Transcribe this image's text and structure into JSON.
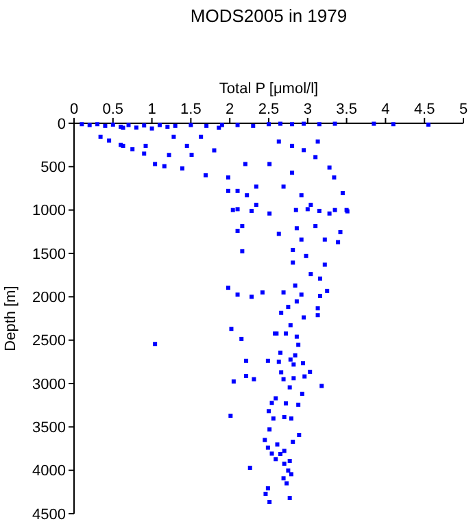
{
  "chart_data": {
    "type": "scatter",
    "title": "MODS2005 in 1979",
    "xlabel": "Total P [μmol/l]",
    "ylabel": "Depth [m]",
    "xlim": [
      0,
      5
    ],
    "xticks": [
      0,
      0.5,
      1,
      1.5,
      2,
      2.5,
      3,
      3.5,
      4,
      4.5,
      5
    ],
    "ylim": [
      4500,
      0
    ],
    "yticks": [
      0,
      500,
      1000,
      1500,
      2000,
      2500,
      3000,
      3500,
      4000,
      4500
    ],
    "marker": "square",
    "grid": false,
    "series": [
      {
        "color": "#0000ff",
        "x": [
          0.1,
          0.2,
          0.3,
          0.4,
          0.5,
          0.6,
          0.7,
          0.8,
          0.9,
          1.0,
          1.1,
          1.2,
          1.3,
          1.5,
          1.7,
          1.9,
          2.1,
          2.3,
          2.5,
          2.65,
          2.8,
          2.95,
          3.15,
          3.35,
          3.85,
          4.1,
          4.55,
          0.34,
          0.45,
          0.6,
          0.75,
          0.9,
          0.63,
          1.04,
          1.16,
          1.51,
          1.39,
          1.8,
          1.69,
          1.98,
          2.2,
          2.34,
          2.1,
          2.51,
          2.63,
          2.8,
          2.95,
          3.13,
          3.1,
          3.28,
          3.34,
          2.8,
          2.69,
          2.92,
          3.04,
          3.28,
          3.45,
          3.51,
          1.98,
          2.1,
          2.22,
          2.34,
          0.92,
          1.28,
          0.63,
          1.63,
          1.86,
          1.22,
          1.45,
          2.04,
          2.28,
          2.85,
          3.0,
          3.15,
          3.35,
          3.5,
          2.51,
          2.16,
          2.1,
          2.86,
          3.1,
          3.42,
          3.39,
          3.22,
          2.92,
          2.63,
          2.16,
          2.81,
          2.98,
          3.22,
          2.81,
          3.04,
          2.84,
          3.16,
          1.98,
          2.1,
          2.28,
          2.42,
          2.69,
          2.92,
          3.25,
          3.16,
          2.86,
          2.75,
          3.13,
          2.66,
          2.95,
          3.13,
          2.78,
          2.02,
          2.6,
          2.86,
          2.15,
          1.04,
          2.58,
          2.72,
          2.88,
          2.65,
          2.84,
          2.21,
          2.49,
          2.63,
          2.78,
          2.94,
          2.82,
          2.66,
          2.21,
          2.31,
          2.05,
          2.69,
          2.82,
          2.96,
          3.03,
          3.18,
          2.77,
          2.93,
          2.59,
          2.54,
          2.72,
          2.88,
          2.5,
          2.01,
          2.56,
          2.7,
          2.79,
          2.51,
          2.89,
          2.45,
          2.81,
          2.61,
          2.49,
          2.7,
          2.54,
          2.65,
          2.59,
          2.77,
          2.7,
          2.26,
          2.75,
          2.79,
          2.69,
          2.73,
          2.49,
          2.46,
          2.77,
          2.51
        ],
        "values": [
          10,
          20,
          10,
          30,
          15,
          40,
          20,
          50,
          25,
          60,
          20,
          40,
          30,
          20,
          30,
          20,
          20,
          30,
          10,
          5,
          10,
          5,
          10,
          5,
          5,
          10,
          15,
          156,
          200,
          250,
          300,
          350,
          260,
          470,
          495,
          364,
          520,
          312,
          600,
          625,
          470,
          730,
          780,
          470,
          210,
          260,
          310,
          210,
          390,
          510,
          625,
          570,
          730,
          830,
          940,
          1040,
          805,
          1015,
          780,
          990,
          830,
          940,
          260,
          156,
          52,
          156,
          52,
          365,
          260,
          1000,
          1010,
          1000,
          990,
          1010,
          1000,
          1000,
          1040,
          1185,
          1240,
          1210,
          1185,
          1255,
          1370,
          1340,
          1340,
          1275,
          1475,
          1460,
          1530,
          1630,
          1606,
          1738,
          1870,
          1790,
          1896,
          1975,
          2000,
          1950,
          1950,
          1975,
          1933,
          1990,
          2054,
          2117,
          2133,
          2185,
          2238,
          2212,
          2328,
          2370,
          2423,
          2460,
          2486,
          2544,
          2423,
          2423,
          2554,
          2644,
          2675,
          2738,
          2738,
          2749,
          2723,
          2765,
          2781,
          2870,
          2913,
          2950,
          2976,
          2950,
          2939,
          2918,
          2865,
          3028,
          3044,
          3118,
          3170,
          3223,
          3229,
          3244,
          3318,
          3371,
          3403,
          3387,
          3403,
          3529,
          3592,
          3650,
          3671,
          3702,
          3739,
          3776,
          3808,
          3813,
          3871,
          3892,
          3924,
          3971,
          4003,
          4045,
          4092,
          4150,
          4208,
          4271,
          4319,
          4366
        ]
      }
    ]
  }
}
